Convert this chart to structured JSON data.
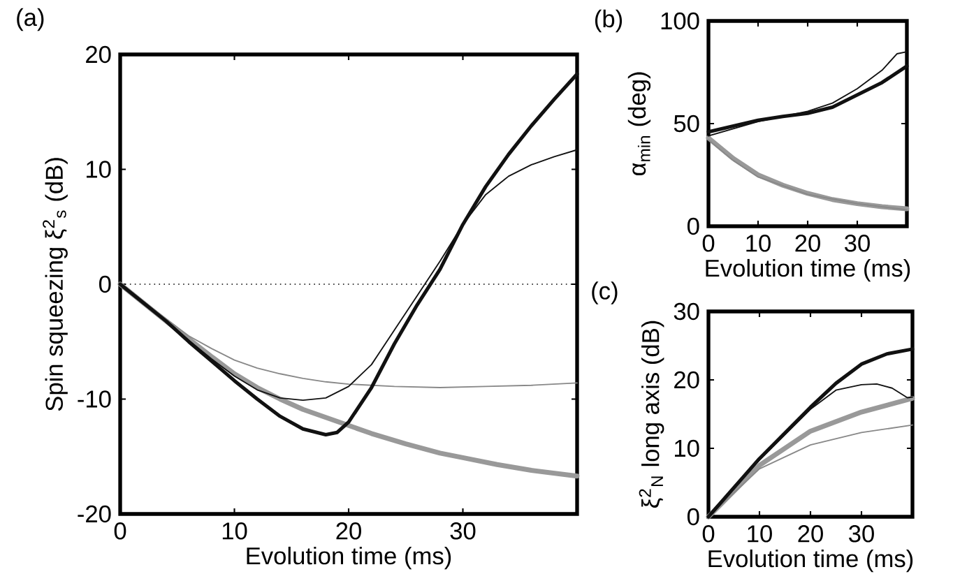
{
  "chart_data": [
    {
      "type": "line",
      "title": "(a)",
      "xlabel": "Evolution time (ms)",
      "ylabel": "Spin squeezing ξ$^{2}$$_{s}$ (dB)",
      "xlim": [
        0,
        40
      ],
      "ylim": [
        -20,
        20
      ],
      "xticks": [
        0,
        10,
        20,
        30
      ],
      "yticks": [
        -20,
        -10,
        0,
        10,
        20
      ],
      "ref_lines": [
        {
          "axis": "y",
          "value": 0,
          "line_style": "dotted",
          "color": "#000000"
        }
      ],
      "series": [
        {
          "color": "#111111",
          "x": [
            0,
            2,
            4,
            6,
            8,
            10,
            12,
            14,
            16,
            18,
            19,
            20,
            22,
            24,
            26,
            28,
            30,
            32,
            34,
            36,
            38,
            40
          ],
          "values": [
            0,
            -1.6,
            -3.2,
            -5,
            -6.7,
            -8.4,
            -10,
            -11.5,
            -12.6,
            -13.1,
            -12.9,
            -12,
            -9,
            -5.2,
            -1.8,
            1.3,
            5.2,
            8.5,
            11.3,
            13.8,
            16.1,
            18.3
          ]
        },
        {
          "color": "#111111",
          "x": [
            0,
            2,
            4,
            6,
            8,
            10,
            12,
            14,
            16,
            18,
            20,
            22,
            24,
            26,
            28,
            30,
            32,
            34,
            36,
            38,
            40
          ],
          "values": [
            0,
            -1.6,
            -3.2,
            -4.9,
            -6.5,
            -8,
            -9.2,
            -9.9,
            -10.1,
            -9.9,
            -8.9,
            -7,
            -4,
            -1,
            2,
            5.2,
            7.8,
            9.4,
            10.4,
            11.1,
            11.7
          ]
        },
        {
          "color": "#999999",
          "x": [
            0,
            4,
            8,
            10,
            12,
            14,
            16,
            18,
            20,
            22,
            25,
            28,
            30,
            33,
            36,
            40
          ],
          "values": [
            0,
            -3.2,
            -6.3,
            -7.8,
            -9,
            -10,
            -10.9,
            -11.6,
            -12.3,
            -13,
            -13.9,
            -14.7,
            -15.1,
            -15.7,
            -16.2,
            -16.7
          ]
        },
        {
          "color": "#888888",
          "x": [
            0,
            4,
            6,
            8,
            10,
            12,
            14,
            16,
            18,
            20,
            24,
            28,
            32,
            36,
            40
          ],
          "values": [
            0,
            -3,
            -4.5,
            -5.6,
            -6.6,
            -7.3,
            -7.8,
            -8.2,
            -8.5,
            -8.7,
            -8.9,
            -9,
            -8.9,
            -8.8,
            -8.6
          ]
        }
      ]
    },
    {
      "type": "line",
      "title": "(b)",
      "xlabel": "Evolution time (ms)",
      "ylabel": "α$_{min}$ (deg)",
      "xlim": [
        0,
        40
      ],
      "ylim": [
        0,
        100
      ],
      "xticks": [
        0,
        10,
        20,
        30
      ],
      "yticks": [
        0,
        50,
        100
      ],
      "series": [
        {
          "color": "#111111",
          "x": [
            0,
            10,
            15,
            20,
            25,
            30,
            35,
            40
          ],
          "values": [
            46,
            51.6,
            53.5,
            55,
            58,
            64,
            70,
            78
          ]
        },
        {
          "color": "#111111",
          "x": [
            0,
            10,
            20,
            25,
            30,
            35,
            38,
            40
          ],
          "values": [
            44,
            51,
            56,
            60,
            67,
            76,
            84,
            85
          ]
        },
        {
          "color": "#999999",
          "x": [
            0,
            5,
            10,
            15,
            20,
            25,
            30,
            35,
            40
          ],
          "values": [
            43,
            33,
            25,
            20,
            16,
            13,
            11,
            9.5,
            8.5
          ]
        },
        {
          "color": "#888888",
          "x": [
            0,
            5,
            10,
            20,
            30,
            40
          ],
          "values": [
            42,
            32,
            24,
            15.5,
            11,
            8
          ]
        }
      ]
    },
    {
      "type": "line",
      "title": "(c)",
      "xlabel": "Evolution time (ms)",
      "ylabel": "ξ$^{2}$$_{N}$ long axis (dB)",
      "xlim": [
        0,
        40
      ],
      "ylim": [
        0,
        30
      ],
      "xticks": [
        0,
        10,
        20,
        30
      ],
      "yticks": [
        0,
        10,
        20,
        30
      ],
      "series": [
        {
          "color": "#111111",
          "x": [
            0,
            10,
            20,
            25,
            30,
            35,
            40
          ],
          "values": [
            0,
            8.5,
            16,
            19.5,
            22.3,
            23.8,
            24.5
          ]
        },
        {
          "color": "#111111",
          "x": [
            0,
            10,
            20,
            25,
            30,
            33,
            36,
            39,
            40
          ],
          "values": [
            0,
            8.3,
            15.7,
            18.5,
            19.3,
            19.4,
            18.8,
            17.4,
            17.5
          ]
        },
        {
          "color": "#999999",
          "x": [
            0,
            10,
            20,
            30,
            40
          ],
          "values": [
            0,
            7.5,
            12.5,
            15.3,
            17.3
          ]
        },
        {
          "color": "#888888",
          "x": [
            0,
            10,
            20,
            30,
            40
          ],
          "values": [
            0,
            7,
            10.5,
            12.3,
            13.4
          ]
        }
      ]
    }
  ]
}
